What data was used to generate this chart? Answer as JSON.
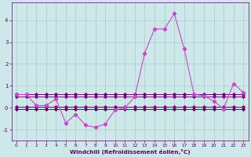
{
  "x": [
    0,
    1,
    2,
    3,
    4,
    5,
    6,
    7,
    8,
    9,
    10,
    11,
    12,
    13,
    14,
    15,
    16,
    17,
    18,
    19,
    20,
    21,
    22,
    23
  ],
  "main_line": [
    0.6,
    0.6,
    0.1,
    0.1,
    0.4,
    -0.7,
    -0.3,
    -0.8,
    -0.9,
    -0.75,
    -0.1,
    0.0,
    0.5,
    2.5,
    3.6,
    3.6,
    4.3,
    2.7,
    0.6,
    0.55,
    0.3,
    -0.05,
    1.1,
    0.7
  ],
  "flat_line1": [
    0.6,
    0.6,
    0.6,
    0.6,
    0.6,
    0.6,
    0.6,
    0.6,
    0.6,
    0.6,
    0.6,
    0.6,
    0.6,
    0.6,
    0.6,
    0.6,
    0.6,
    0.6,
    0.6,
    0.6,
    0.6,
    0.6,
    0.6,
    0.6
  ],
  "flat_line2": [
    0.5,
    0.5,
    0.5,
    0.5,
    0.5,
    0.5,
    0.5,
    0.5,
    0.5,
    0.5,
    0.5,
    0.5,
    0.5,
    0.5,
    0.5,
    0.5,
    0.5,
    0.5,
    0.5,
    0.5,
    0.5,
    0.5,
    0.5,
    0.5
  ],
  "flat_line3": [
    0.05,
    0.05,
    0.05,
    0.05,
    0.05,
    0.05,
    0.05,
    0.05,
    0.05,
    0.05,
    0.05,
    0.05,
    0.05,
    0.05,
    0.05,
    0.05,
    0.05,
    0.05,
    0.05,
    0.05,
    0.05,
    0.05,
    0.05,
    0.05
  ],
  "flat_line4": [
    -0.05,
    -0.05,
    -0.05,
    -0.05,
    -0.05,
    -0.05,
    -0.05,
    -0.05,
    -0.05,
    -0.05,
    -0.05,
    -0.05,
    -0.05,
    -0.05,
    -0.05,
    -0.05,
    -0.05,
    -0.05,
    -0.05,
    -0.05,
    -0.05,
    -0.05,
    -0.05,
    -0.05
  ],
  "xlabel": "Windchill (Refroidissement éolien,°C)",
  "xlim": [
    -0.5,
    23.5
  ],
  "ylim": [
    -1.5,
    4.8
  ],
  "yticks": [
    -1,
    0,
    1,
    2,
    3,
    4
  ],
  "xticks": [
    0,
    1,
    2,
    3,
    4,
    5,
    6,
    7,
    8,
    9,
    10,
    11,
    12,
    13,
    14,
    15,
    16,
    17,
    18,
    19,
    20,
    21,
    22,
    23
  ],
  "grid_color": "#aacccc",
  "bg_color": "#cce8e8",
  "dark_purple": "#660066",
  "mid_purple": "#880088",
  "light_purple": "#cc44cc",
  "tick_color": "#660066",
  "xlabel_color": "#660066"
}
